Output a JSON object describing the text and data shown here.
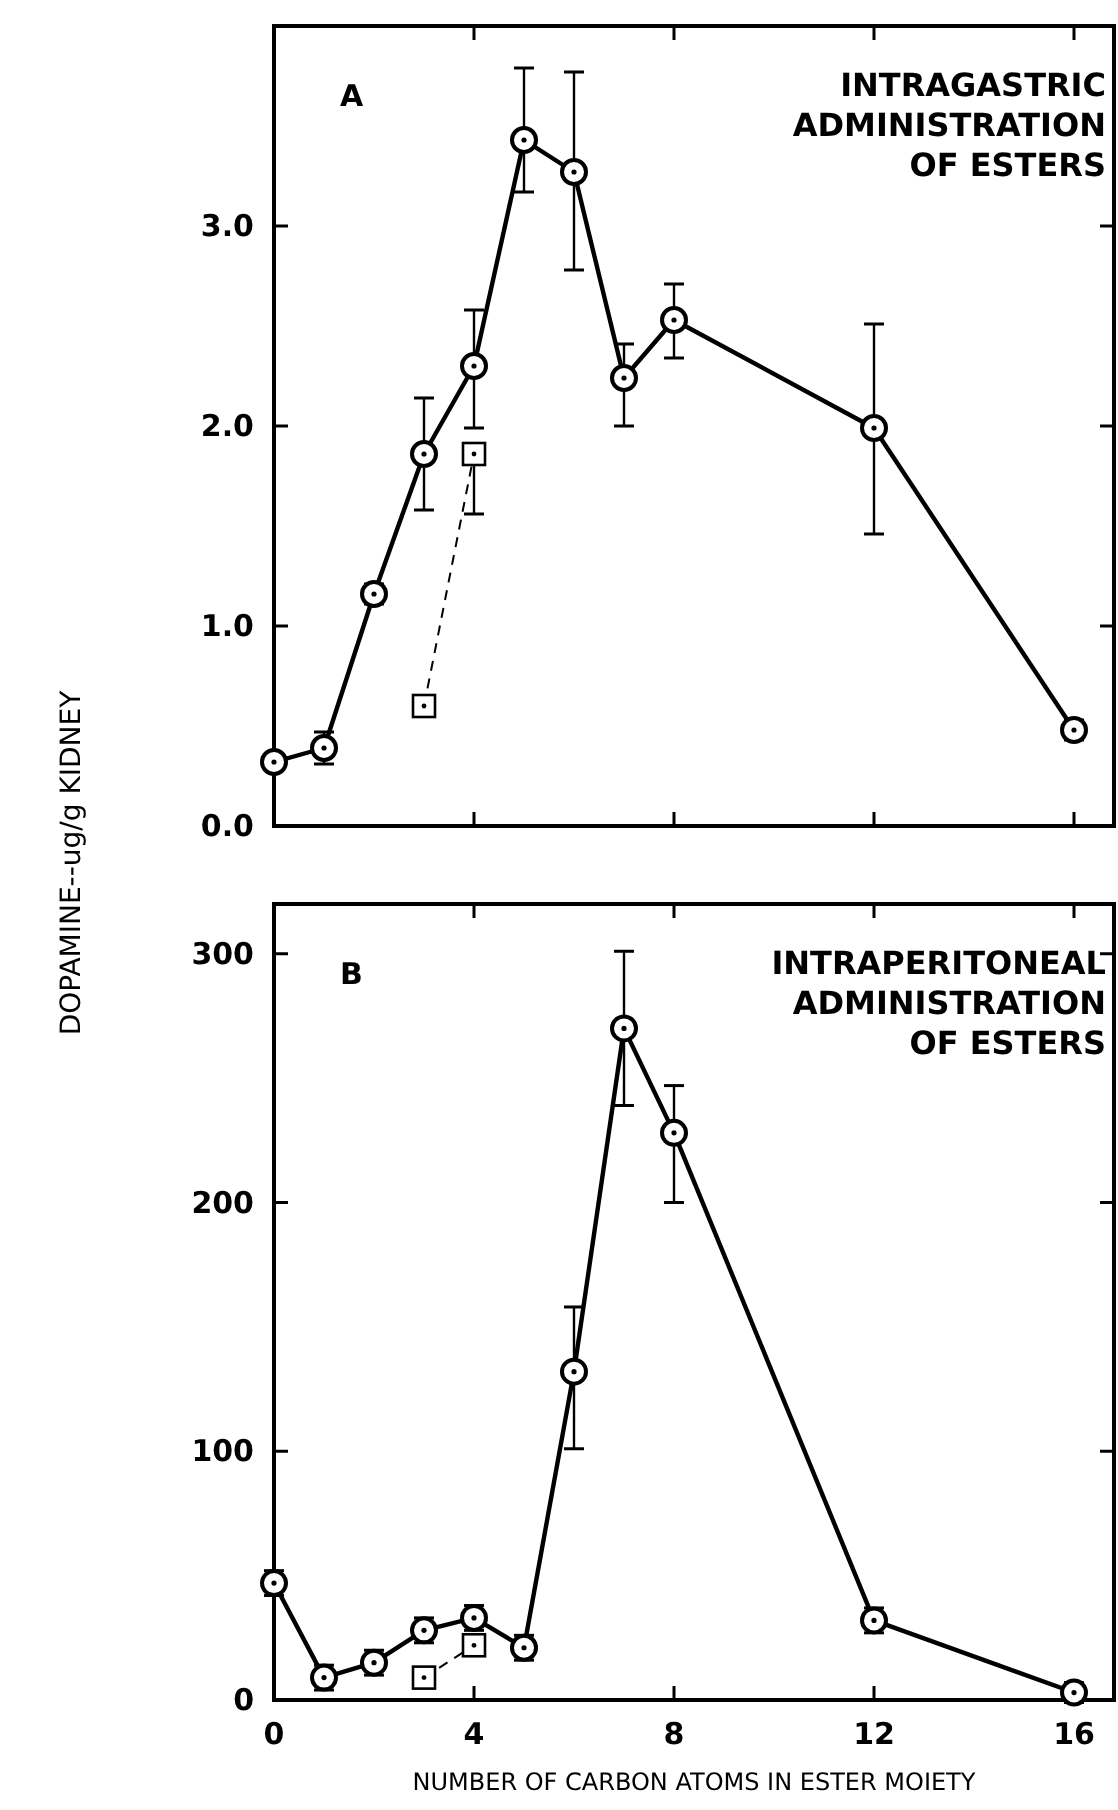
{
  "chart_data": [
    {
      "type": "line",
      "ylabel": "DOPAMINE--ug/g KIDNEY",
      "annotations": [
        "A",
        "INTRAGASTRIC\nADMINISTRATION\nOF ESTERS"
      ],
      "xlim": [
        0,
        16.8
      ],
      "xticks": [
        0,
        4,
        8,
        12,
        16
      ],
      "ylim": [
        0,
        4
      ],
      "yticks": [
        {
          "value": 0,
          "label": "0.0"
        },
        {
          "value": 1,
          "label": "1.0"
        },
        {
          "value": 2,
          "label": "2.0"
        },
        {
          "value": 3,
          "label": "3.0"
        }
      ],
      "tick_labels": "y",
      "series": [
        {
          "color": "#000000",
          "marker": "circle",
          "line_style": "solid",
          "x": [
            0,
            1,
            2,
            3,
            4,
            5,
            6,
            7,
            8,
            12,
            16
          ],
          "values": [
            0.32,
            0.39,
            1.16,
            1.86,
            2.3,
            3.43,
            3.27,
            2.24,
            2.53,
            1.99,
            0.48
          ],
          "errors": [
            null,
            0.08,
            0.05,
            [
              1.58,
              2.14
            ],
            [
              1.99,
              2.58
            ],
            [
              3.17,
              3.79
            ],
            [
              2.78,
              3.77
            ],
            [
              2.0,
              2.41
            ],
            [
              2.34,
              2.71
            ],
            [
              1.46,
              2.51
            ],
            0.05
          ]
        },
        {
          "color": "#000000",
          "marker": "square",
          "line_style": "dashed",
          "x": [
            3,
            4
          ],
          "values": [
            0.6,
            1.86
          ],
          "errors": [
            null,
            [
              1.56,
              1.86
            ]
          ]
        }
      ]
    },
    {
      "type": "line",
      "xlabel": "NUMBER OF CARBON ATOMS IN ESTER MOIETY",
      "annotations": [
        "B",
        "INTRAPERITONEAL\nADMINISTRATION\nOF ESTERS"
      ],
      "xlim": [
        0,
        16.8
      ],
      "xticks": [
        0,
        4,
        8,
        12,
        16
      ],
      "ylim": [
        0,
        320
      ],
      "yticks": [
        0,
        100,
        200,
        300
      ],
      "series": [
        {
          "color": "#000000",
          "marker": "circle",
          "line_style": "solid",
          "x": [
            0,
            1,
            2,
            3,
            4,
            5,
            6,
            7,
            8,
            12,
            16
          ],
          "values": [
            47,
            9,
            15,
            28,
            33,
            21,
            132,
            270,
            228,
            32,
            3
          ],
          "errors": [
            5,
            5,
            5,
            5,
            5,
            5,
            [
              101,
              158
            ],
            [
              239,
              301
            ],
            [
              200,
              247
            ],
            5,
            4
          ]
        },
        {
          "color": "#000000",
          "marker": "square",
          "line_style": "dashed",
          "x": [
            3,
            4
          ],
          "values": [
            9,
            22
          ]
        }
      ]
    }
  ]
}
